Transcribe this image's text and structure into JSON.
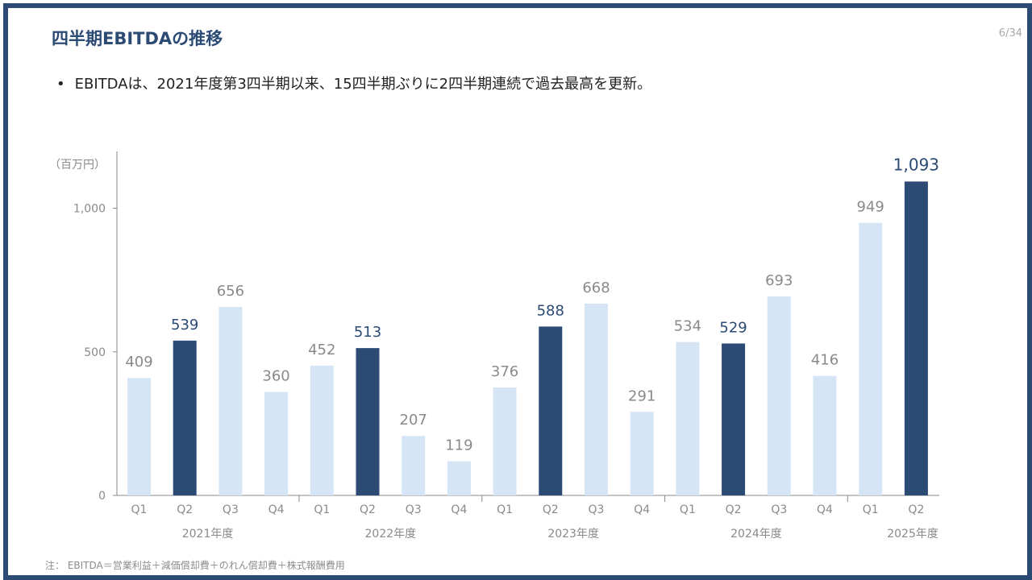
{
  "header": {
    "title": "四半期EBITDAの推移",
    "page_number": "6/34"
  },
  "bullet": {
    "marker": "•",
    "text": "EBITDAは、2021年度第3四半期以来、15四半期ぶりに2四半期連続で過去最高を更新。"
  },
  "footnote": "注： EBITDA＝営業利益＋減価償却費＋のれん償却費＋株式報酬費用",
  "colors": {
    "highlight": "#2b4a74",
    "normal": "#d5e5f5",
    "axis_text": "#8a8a8a",
    "highlight_text": "#2b4a74",
    "axis_line": "#8a8a8a"
  },
  "chart_data": {
    "type": "bar",
    "ylabel": "（百万円）",
    "ylim": [
      0,
      1200
    ],
    "yticks": [
      {
        "value": 0,
        "label": "0"
      },
      {
        "value": 500,
        "label": "500"
      },
      {
        "value": 1000,
        "label": "1,000"
      }
    ],
    "fiscal_years": [
      {
        "label": "2021年度",
        "quarters": 4
      },
      {
        "label": "2022年度",
        "quarters": 4
      },
      {
        "label": "2023年度",
        "quarters": 4
      },
      {
        "label": "2024年度",
        "quarters": 4
      },
      {
        "label": "2025年度",
        "quarters": 2
      }
    ],
    "bars": [
      {
        "year": "2021年度",
        "quarter": "Q1",
        "value": 409,
        "label": "409",
        "highlight": false
      },
      {
        "year": "2021年度",
        "quarter": "Q2",
        "value": 539,
        "label": "539",
        "highlight": true
      },
      {
        "year": "2021年度",
        "quarter": "Q3",
        "value": 656,
        "label": "656",
        "highlight": false
      },
      {
        "year": "2021年度",
        "quarter": "Q4",
        "value": 360,
        "label": "360",
        "highlight": false
      },
      {
        "year": "2022年度",
        "quarter": "Q1",
        "value": 452,
        "label": "452",
        "highlight": false
      },
      {
        "year": "2022年度",
        "quarter": "Q2",
        "value": 513,
        "label": "513",
        "highlight": true
      },
      {
        "year": "2022年度",
        "quarter": "Q3",
        "value": 207,
        "label": "207",
        "highlight": false
      },
      {
        "year": "2022年度",
        "quarter": "Q4",
        "value": 119,
        "label": "119",
        "highlight": false
      },
      {
        "year": "2023年度",
        "quarter": "Q1",
        "value": 376,
        "label": "376",
        "highlight": false
      },
      {
        "year": "2023年度",
        "quarter": "Q2",
        "value": 588,
        "label": "588",
        "highlight": true
      },
      {
        "year": "2023年度",
        "quarter": "Q3",
        "value": 668,
        "label": "668",
        "highlight": false
      },
      {
        "year": "2023年度",
        "quarter": "Q4",
        "value": 291,
        "label": "291",
        "highlight": false
      },
      {
        "year": "2024年度",
        "quarter": "Q1",
        "value": 534,
        "label": "534",
        "highlight": false
      },
      {
        "year": "2024年度",
        "quarter": "Q2",
        "value": 529,
        "label": "529",
        "highlight": true
      },
      {
        "year": "2024年度",
        "quarter": "Q3",
        "value": 693,
        "label": "693",
        "highlight": false
      },
      {
        "year": "2024年度",
        "quarter": "Q4",
        "value": 416,
        "label": "416",
        "highlight": false
      },
      {
        "year": "2025年度",
        "quarter": "Q1",
        "value": 949,
        "label": "949",
        "highlight": false
      },
      {
        "year": "2025年度",
        "quarter": "Q2",
        "value": 1093,
        "label": "1,093",
        "highlight": true
      }
    ]
  }
}
